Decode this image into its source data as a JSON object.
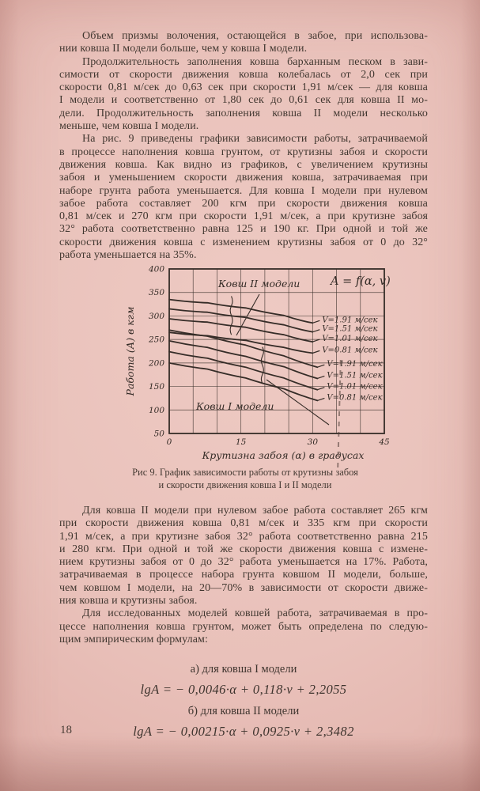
{
  "page": {
    "number": "18",
    "paragraphs": {
      "p1": {
        "lines": [
          "Объем призмы волочения, остающейся в забое, при использова-",
          "нии ковша II модели больше, чем у ковша I модели."
        ]
      },
      "p2": {
        "lines": [
          "Продолжительность заполнения ковша барханным песком в зави-",
          "симости от скорости движения ковша колебалась от 2,0 сек при",
          "скорости 0,81 м/сек до 0,63 сек при скорости 1,91 м/сек — для ковша",
          "I модели и соответственно от 1,80 сек до 0,61 сек для ковша II мо-",
          "дели. Продолжительность заполнения ковша II модели несколько",
          "меньше, чем ковша I модели."
        ]
      },
      "p3": {
        "lines": [
          "На рис. 9 приведены графики зависимости работы, затрачиваемой",
          "в процессе наполнения ковша грунтом, от крутизны забоя и скорости",
          "движения ковша. Как видно из графиков, с увеличением крутизны",
          "забоя и уменьшением скорости движения ковша, затрачиваемая при",
          "наборе грунта работа уменьшается. Для ковша I модели при нулевом",
          "забое работа составляет 200 кгм при скорости движения ковша",
          "0,81 м/сек и 270 кгм при скорости 1,91 м/сек, а при крутизне забоя",
          "32° работа соответственно равна 125 и 190 кг. При одной и той же",
          "скорости движения ковша с изменением крутизны забоя от 0 до 32°",
          "работа уменьшается на 35%."
        ]
      },
      "p4": {
        "lines": [
          "Для ковша II модели при нулевом забое работа составляет 265 кгм",
          "при скорости движения ковша 0,81 м/сек и 335 кгм при скорости",
          "1,91 м/сек, а при крутизне забоя 32° работа соответственно равна 215",
          "и 280 кгм. При одной и той же скорости движения ковша с измене-",
          "нием крутизны забоя от 0 до 32° работа уменьшается на 17%. Работа,",
          "затрачиваемая в процессе набора грунта ковшом II модели, больше,",
          "чем ковшом I модели, на 20—70% в зависимости от скорости движе-",
          "ния ковша и крутизны забоя."
        ]
      },
      "p5": {
        "lines": [
          "Для исследованных моделей ковшей работа, затрачиваемая в про-",
          "цессе наполнения ковша грунтом, может быть определена по следую-",
          "щим эмпирическим формулам:"
        ]
      }
    },
    "figure_caption": {
      "lines": [
        "Рис 9. График зависимости работы от крутизны забоя",
        "и скорости движения ковша I и II модели"
      ]
    },
    "formulas": {
      "item_a_label": "а) для ковша I модели",
      "item_a_formula": "lgA = − 0,0046·α + 0,118·v + 2,2055",
      "item_b_label": "б) для ковша II модели",
      "item_b_formula": "lgA = − 0,00215·α + 0,0925·v + 2,3482"
    }
  },
  "chart_data": {
    "type": "line",
    "title": "A = f(α, v)",
    "xlabel": "Крутизна забоя (α) в градусах",
    "ylabel": "Работа (А) в кгм",
    "xlim": [
      0,
      45
    ],
    "ylim": [
      50,
      400
    ],
    "x_ticks": [
      0,
      15,
      30,
      45
    ],
    "y_ticks": [
      400,
      350,
      300,
      250,
      200,
      150,
      100,
      50
    ],
    "grid": true,
    "grid_step_x": 5,
    "grid_step_y": 50,
    "ink_color": "#352c27",
    "groups": [
      {
        "name": "Ковш II модели",
        "x": [
          0,
          8,
          16,
          24,
          30
        ],
        "series": [
          {
            "label": "V=1.91 м/сек",
            "values": [
              335,
              328,
              317,
              301,
              285
            ]
          },
          {
            "label": "V=1.51 м/сек",
            "values": [
              315,
              308,
              297,
              281,
              266
            ]
          },
          {
            "label": "V=1.01 м/сек",
            "values": [
              294,
              287,
              276,
              260,
              245
            ]
          },
          {
            "label": "V=0.81 м/сек",
            "values": [
              265,
              258,
              248,
              233,
              221
            ]
          }
        ]
      },
      {
        "name": "Ковш I модели",
        "x": [
          0,
          8,
          16,
          24,
          31
        ],
        "series": [
          {
            "label": "V=1.91 м/сек",
            "values": [
              270,
              257,
              238,
              215,
              191
            ]
          },
          {
            "label": "V=1.51 м/сек",
            "values": [
              247,
              233,
              214,
              192,
              167
            ]
          },
          {
            "label": "V=1.01 м/сек",
            "values": [
              224,
              210,
              191,
              168,
              143
            ]
          },
          {
            "label": "V=0.81 м/сек",
            "values": [
              200,
              187,
              168,
              145,
              120
            ]
          }
        ]
      }
    ],
    "anchor_values_from_text": {
      "model_I": {
        "at_0deg": {
          "v0.81": 200,
          "v1.91": 270
        },
        "at_32deg": {
          "v0.81": 125,
          "v1.91": 190
        }
      },
      "model_II": {
        "at_0deg": {
          "v0.81": 265,
          "v1.91": 335
        },
        "at_32deg": {
          "v0.81": 215,
          "v1.91": 280
        }
      }
    }
  }
}
